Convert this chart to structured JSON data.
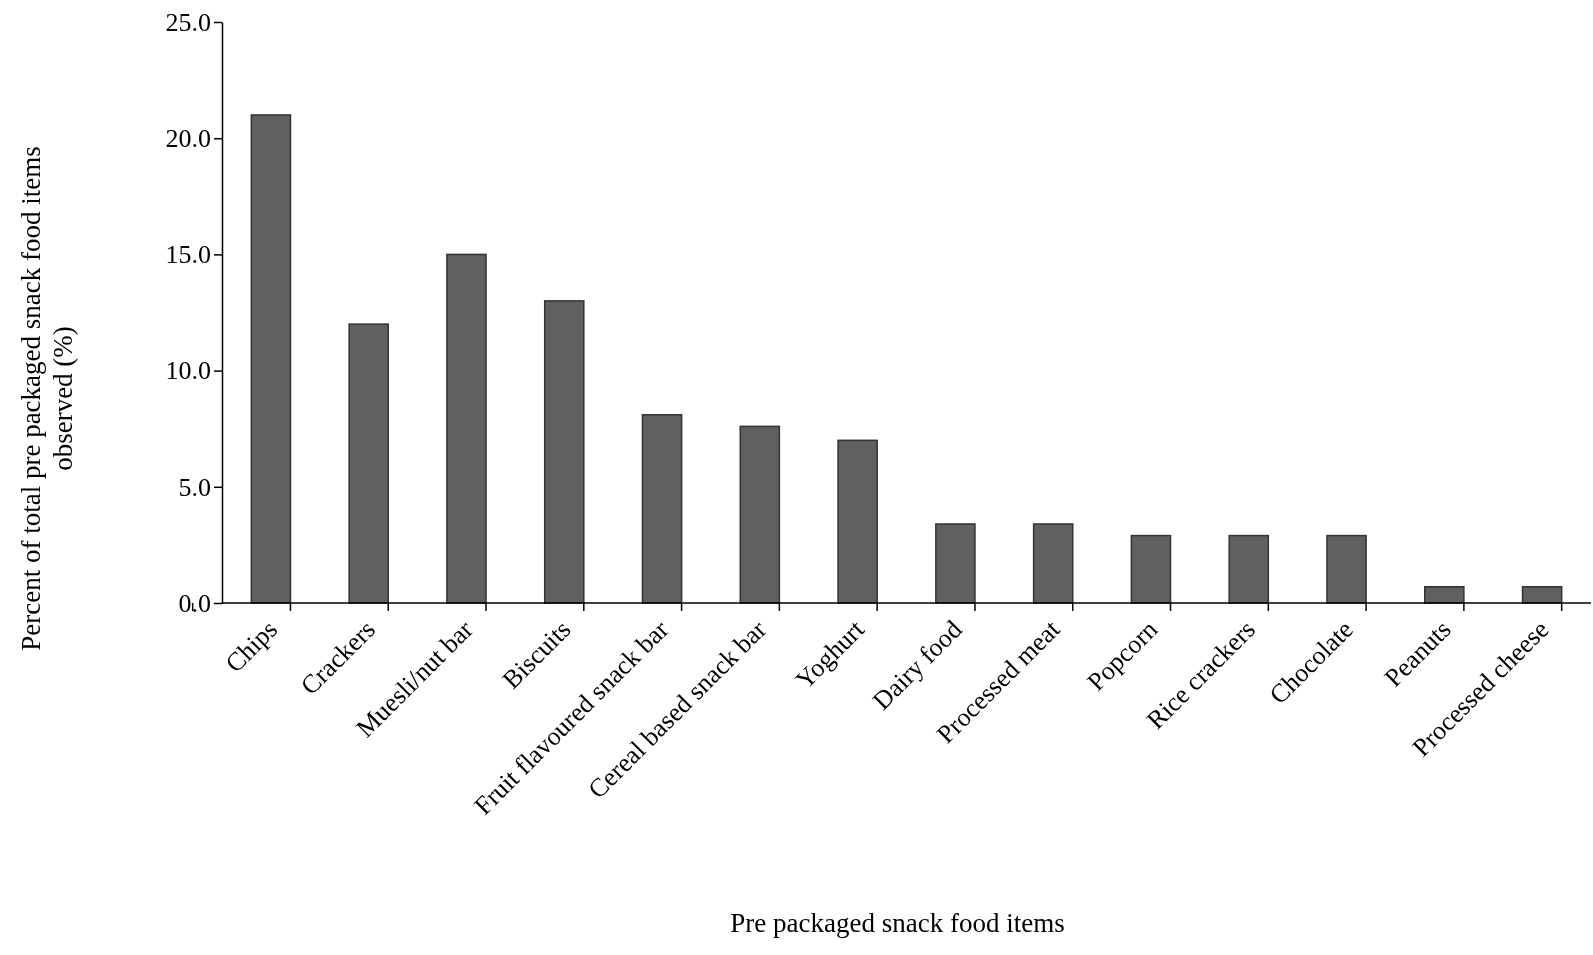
{
  "chart_data": {
    "type": "bar",
    "xlabel": "Pre packaged snack food items",
    "ylabel": "Percent of total pre packaged snack food items observed (%)",
    "categories": [
      "Chips",
      "Crackers",
      "Muesli/nut bar",
      "Biscuits",
      "Fruit flavoured snack bar",
      "Cereal based snack bar",
      "Yoghurt",
      "Dairy food",
      "Processed meat",
      "Popcorn",
      "Rice crackers",
      "Chocolate",
      "Peanuts",
      "Processed cheese"
    ],
    "values": [
      21.0,
      12.0,
      15.0,
      13.0,
      8.1,
      7.6,
      7.0,
      3.4,
      3.4,
      2.9,
      2.9,
      2.9,
      0.7,
      0.7
    ],
    "color": "#606060",
    "ylim": [
      0,
      25
    ],
    "yticks": [
      {
        "value": 0,
        "label": "0.0"
      },
      {
        "value": 5,
        "label": "5.0"
      },
      {
        "value": 10,
        "label": "10.0"
      },
      {
        "value": 15,
        "label": "15.0"
      },
      {
        "value": 20,
        "label": "20.0"
      },
      {
        "value": 25,
        "label": "25.0"
      }
    ],
    "grid": false
  }
}
